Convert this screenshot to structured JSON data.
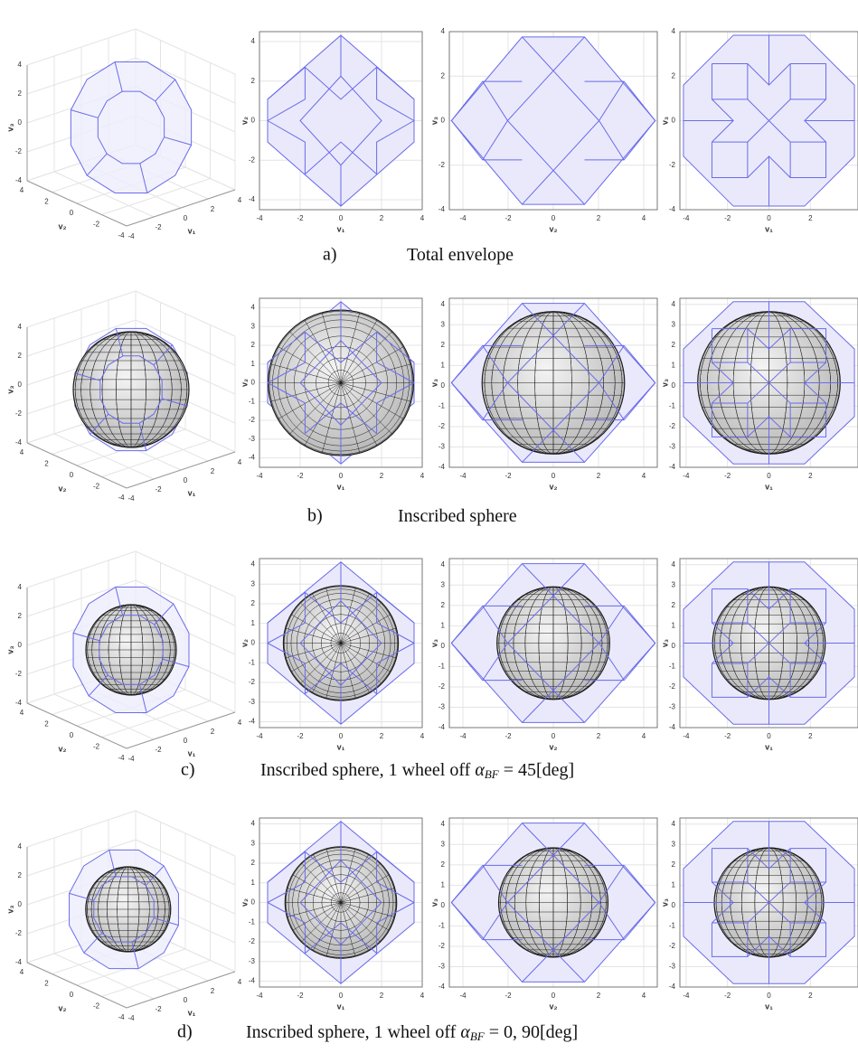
{
  "figure": {
    "rows": [
      {
        "label": "a)",
        "caption": {
          "text": "Total envelope"
        },
        "panels": [
          {
            "kind": "3d",
            "labels": [
              "v₁",
              "v₂",
              "v₃"
            ],
            "v1ticks": [
              -4,
              -2,
              0,
              2,
              4
            ],
            "v2ticks": [
              -4,
              -2,
              0,
              2,
              4
            ],
            "v3ticks": [
              -4,
              -2,
              0,
              2,
              4
            ]
          },
          {
            "kind": "2d",
            "xlabel": "v₁",
            "ylabel": "v₂",
            "xlim": [
              -4,
              4
            ],
            "ylim": [
              -4.5,
              4.5
            ],
            "xticks": [
              -4,
              -2,
              0,
              2,
              4
            ],
            "yticks": [
              -4,
              -2,
              0,
              2,
              4
            ]
          },
          {
            "kind": "2d",
            "xlabel": "v₂",
            "ylabel": "v₃",
            "xlim": [
              -4.6,
              4.6
            ],
            "ylim": [
              -4,
              4
            ],
            "xticks": [
              -4,
              -2,
              0,
              2,
              4
            ],
            "yticks": [
              -4,
              -2,
              0,
              2,
              4
            ]
          },
          {
            "kind": "2d",
            "xlabel": "v₁",
            "ylabel": "v₃",
            "xlim": [
              -4.3,
              4.3
            ],
            "ylim": [
              -4,
              4
            ],
            "xticks": [
              -4,
              -2,
              0,
              2
            ],
            "yticks": [
              -4,
              -2,
              0,
              2,
              4
            ]
          }
        ]
      },
      {
        "label": "b)",
        "caption": {
          "text": "Inscribed sphere"
        },
        "panels": [
          {
            "kind": "3d",
            "labels": [
              "v₁",
              "v₂",
              "v₃"
            ],
            "v1ticks": [
              -4,
              -2,
              0,
              2,
              4
            ],
            "v2ticks": [
              -4,
              -2,
              0,
              2,
              4
            ],
            "v3ticks": [
              -4,
              -2,
              0,
              2,
              4
            ]
          },
          {
            "kind": "2d",
            "xlabel": "v₁",
            "ylabel": "v₂",
            "xlim": [
              -4,
              4
            ],
            "ylim": [
              -4.5,
              4.5
            ],
            "xticks": [
              -4,
              -2,
              0,
              2,
              4
            ],
            "yticks": [
              -4,
              -3,
              -2,
              -1,
              0,
              1,
              2,
              3,
              4
            ]
          },
          {
            "kind": "2d",
            "xlabel": "v₂",
            "ylabel": "v₃",
            "xlim": [
              -4.6,
              4.6
            ],
            "ylim": [
              -4,
              4.3
            ],
            "xticks": [
              -4,
              -2,
              0,
              2,
              4
            ],
            "yticks": [
              -4,
              -3,
              -2,
              -1,
              0,
              1,
              2,
              3,
              4
            ]
          },
          {
            "kind": "2d",
            "xlabel": "v₁",
            "ylabel": "v₃",
            "xlim": [
              -4.3,
              4.3
            ],
            "ylim": [
              -4,
              4.3
            ],
            "xticks": [
              -4,
              -2,
              0,
              2
            ],
            "yticks": [
              -4,
              -3,
              -2,
              -1,
              0,
              1,
              2,
              3,
              4
            ]
          }
        ]
      },
      {
        "label": "c)",
        "caption": {
          "text": "Inscribed sphere, 1 wheel off ",
          "symbol": "α",
          "subscript": "BF",
          "equation": " = 45[deg]"
        },
        "panels": [
          {
            "kind": "3d",
            "labels": [
              "v₁",
              "v₂",
              "v₃"
            ],
            "v1ticks": [
              -4,
              -2,
              0,
              2,
              4
            ],
            "v2ticks": [
              -4,
              -2,
              0,
              2,
              4
            ],
            "v3ticks": [
              -4,
              -2,
              0,
              2,
              4
            ]
          },
          {
            "kind": "2d",
            "xlabel": "v₁",
            "ylabel": "v₂",
            "xlim": [
              -4,
              4
            ],
            "ylim": [
              -4.3,
              4.3
            ],
            "xticks": [
              -4,
              -2,
              0,
              2,
              4
            ],
            "yticks": [
              -4,
              -3,
              -2,
              -1,
              0,
              1,
              2,
              3,
              4
            ]
          },
          {
            "kind": "2d",
            "xlabel": "v₂",
            "ylabel": "v₃",
            "xlim": [
              -4.6,
              4.6
            ],
            "ylim": [
              -4,
              4.3
            ],
            "xticks": [
              -4,
              -2,
              0,
              2,
              4
            ],
            "yticks": [
              -4,
              -3,
              -2,
              -1,
              0,
              1,
              2,
              3,
              4
            ]
          },
          {
            "kind": "2d",
            "xlabel": "v₁",
            "ylabel": "v₃",
            "xlim": [
              -4.3,
              4.3
            ],
            "ylim": [
              -4,
              4.3
            ],
            "xticks": [
              -4,
              -2,
              0,
              2
            ],
            "yticks": [
              -4,
              -3,
              -2,
              -1,
              0,
              1,
              2,
              3,
              4
            ]
          }
        ]
      },
      {
        "label": "d)",
        "caption": {
          "text": "Inscribed sphere, 1 wheel off ",
          "symbol": "α",
          "subscript": "BF",
          "equation": " = 0, 90[deg]"
        },
        "panels": [
          {
            "kind": "3d",
            "labels": [
              "v₁",
              "v₂",
              "v₃"
            ],
            "v1ticks": [
              -4,
              -2,
              0,
              2,
              4
            ],
            "v2ticks": [
              -4,
              -2,
              0,
              2,
              4
            ],
            "v3ticks": [
              -4,
              -2,
              0,
              2,
              4
            ]
          },
          {
            "kind": "2d",
            "xlabel": "v₁",
            "ylabel": "v₂",
            "xlim": [
              -4,
              4
            ],
            "ylim": [
              -4.3,
              4.3
            ],
            "xticks": [
              -4,
              -2,
              0,
              2,
              4
            ],
            "yticks": [
              -4,
              -3,
              -2,
              -1,
              0,
              1,
              2,
              3,
              4
            ]
          },
          {
            "kind": "2d",
            "xlabel": "v₂",
            "ylabel": "v₃",
            "xlim": [
              -4.6,
              4.6
            ],
            "ylim": [
              -4,
              4.3
            ],
            "xticks": [
              -4,
              -2,
              0,
              2,
              4
            ],
            "yticks": [
              -4,
              -3,
              -2,
              -1,
              0,
              1,
              2,
              3,
              4
            ]
          },
          {
            "kind": "2d",
            "xlabel": "v₁",
            "ylabel": "v₃",
            "xlim": [
              -4.3,
              4.3
            ],
            "ylim": [
              -4,
              4.3
            ],
            "xticks": [
              -4,
              -2,
              0,
              2
            ],
            "yticks": [
              -4,
              -3,
              -2,
              -1,
              0,
              1,
              2,
              3,
              4
            ]
          }
        ]
      }
    ]
  }
}
